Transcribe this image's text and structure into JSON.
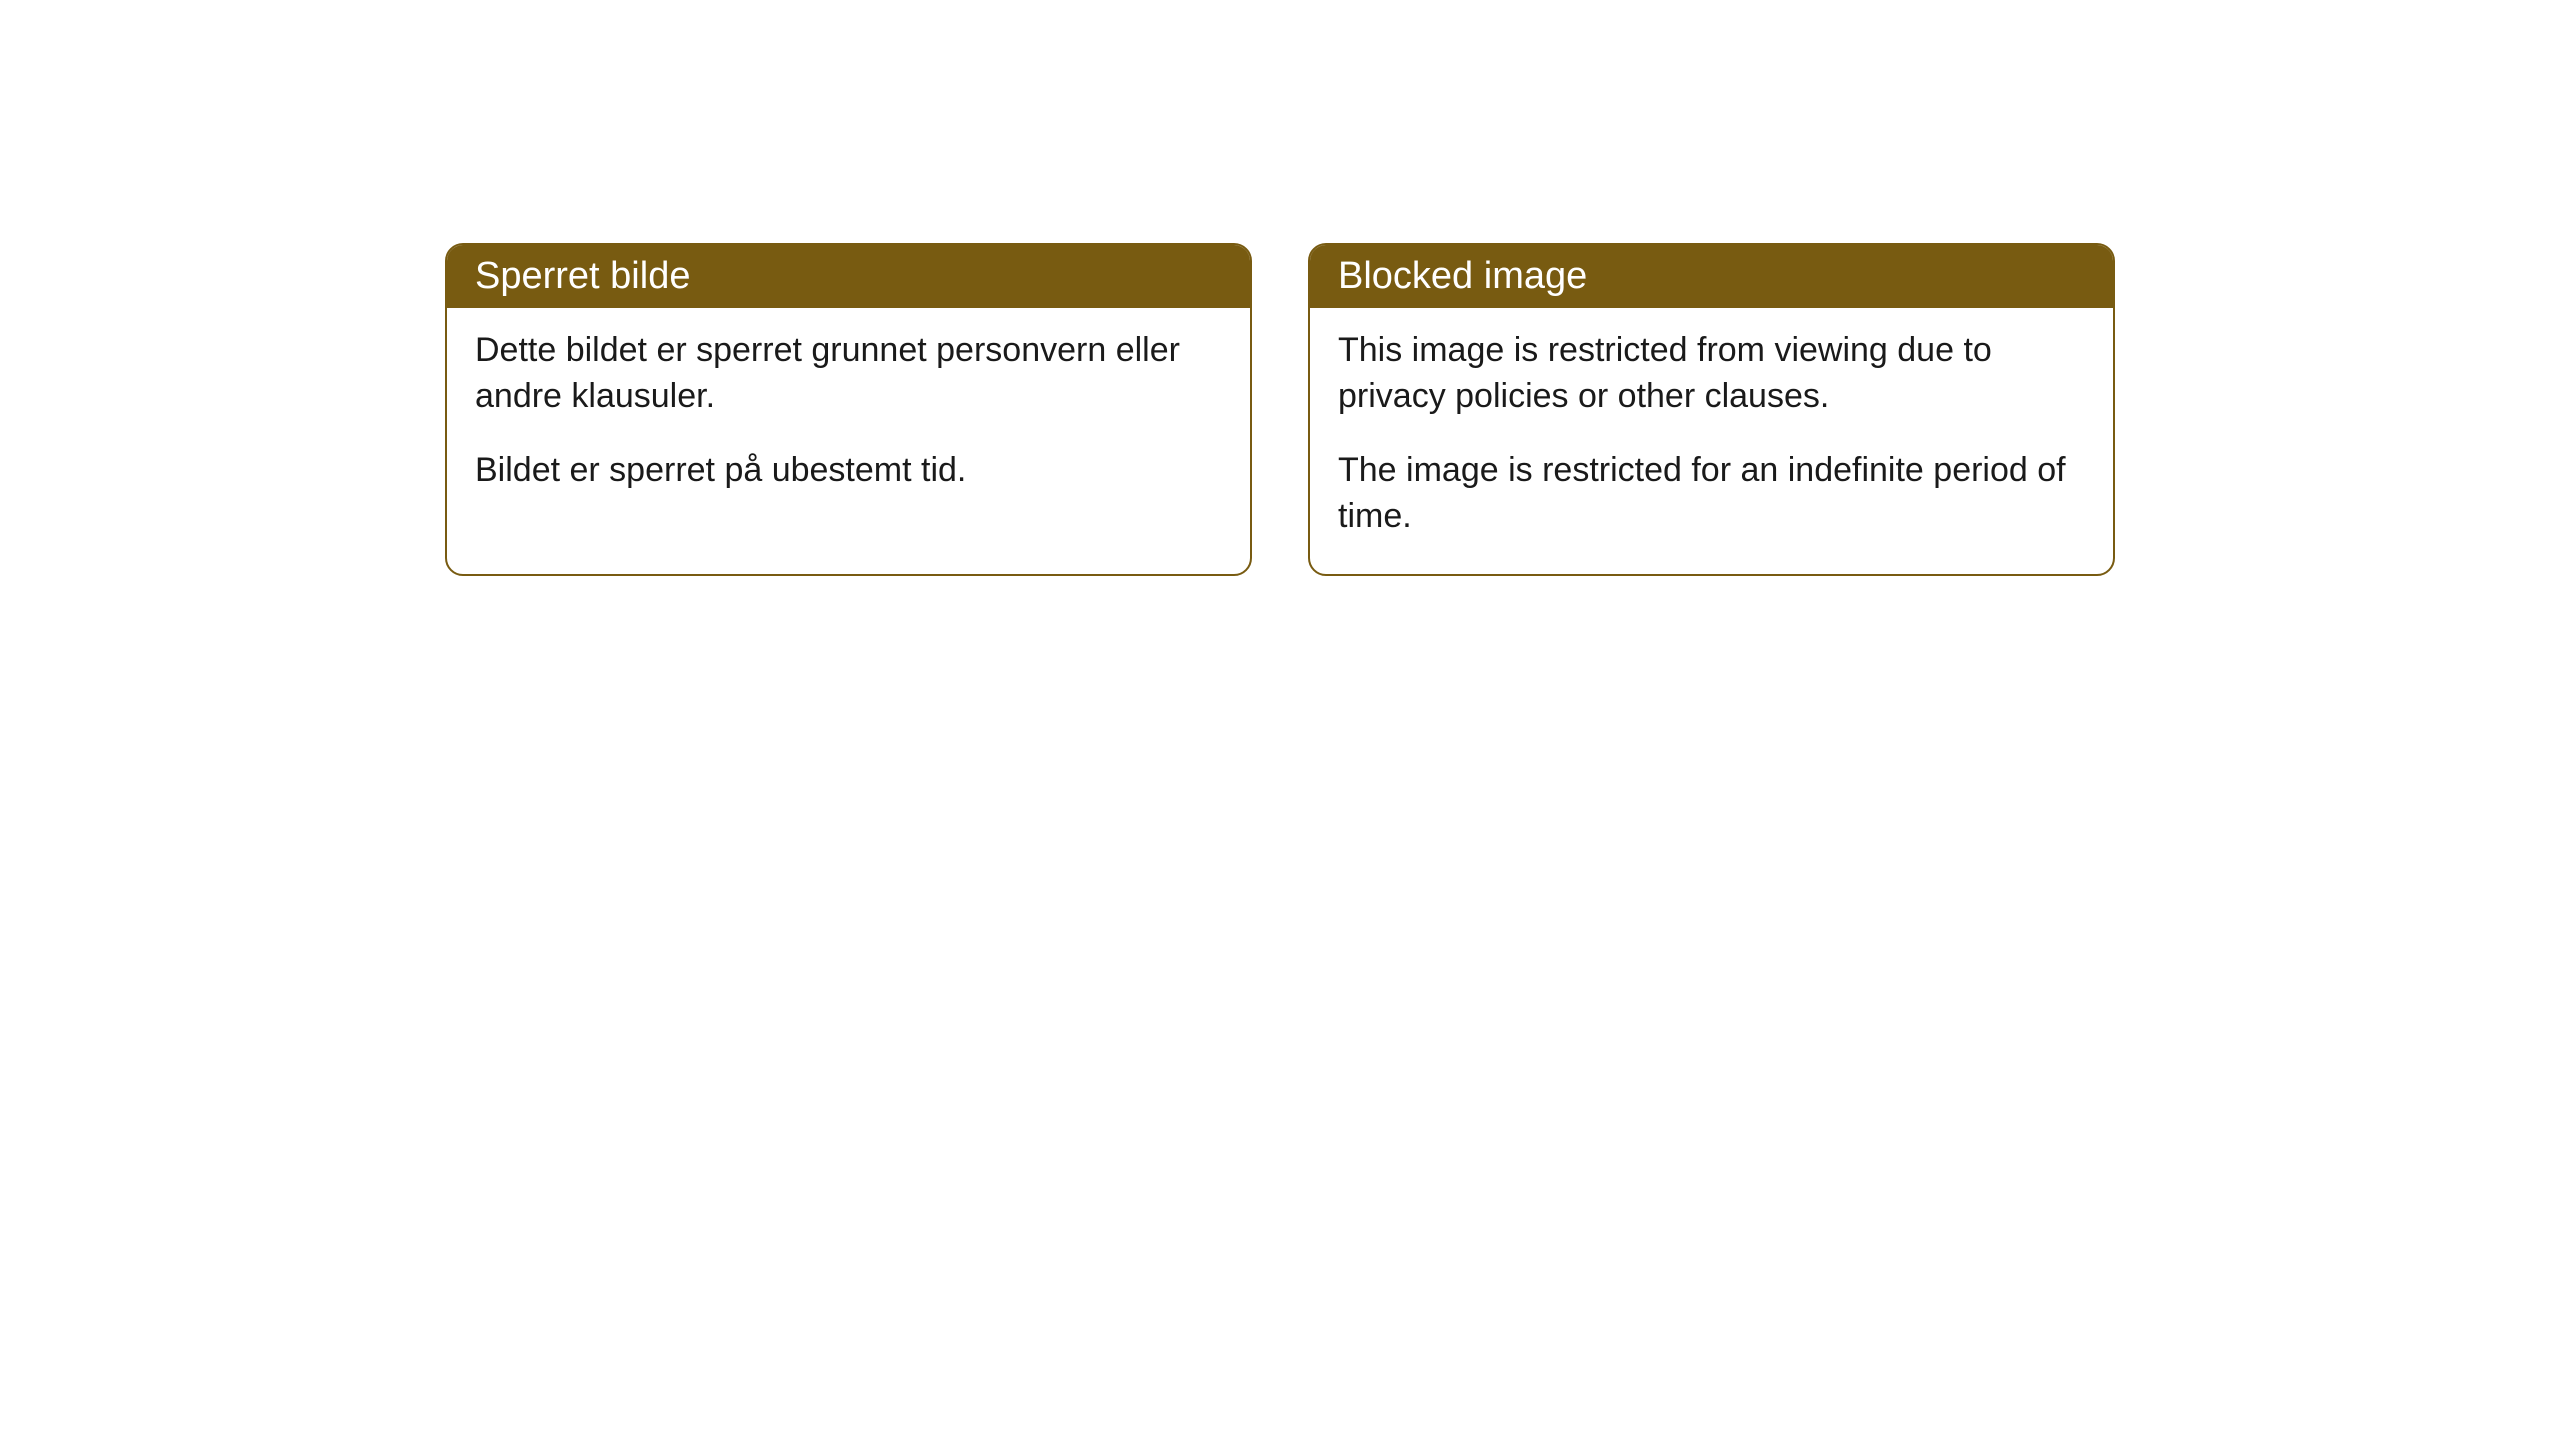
{
  "cards": [
    {
      "title": "Sperret bilde",
      "paragraph1": "Dette bildet er sperret grunnet personvern eller andre klausuler.",
      "paragraph2": "Bildet er sperret på ubestemt tid."
    },
    {
      "title": "Blocked image",
      "paragraph1": "This image is restricted from viewing due to privacy policies or other clauses.",
      "paragraph2": "The image is restricted for an indefinite period of time."
    }
  ],
  "styling": {
    "header_background": "#785b11",
    "header_text_color": "#ffffff",
    "border_color": "#785b11",
    "body_background": "#ffffff",
    "body_text_color": "#1a1a1a",
    "border_radius": 18,
    "title_fontsize": 38,
    "body_fontsize": 34
  }
}
